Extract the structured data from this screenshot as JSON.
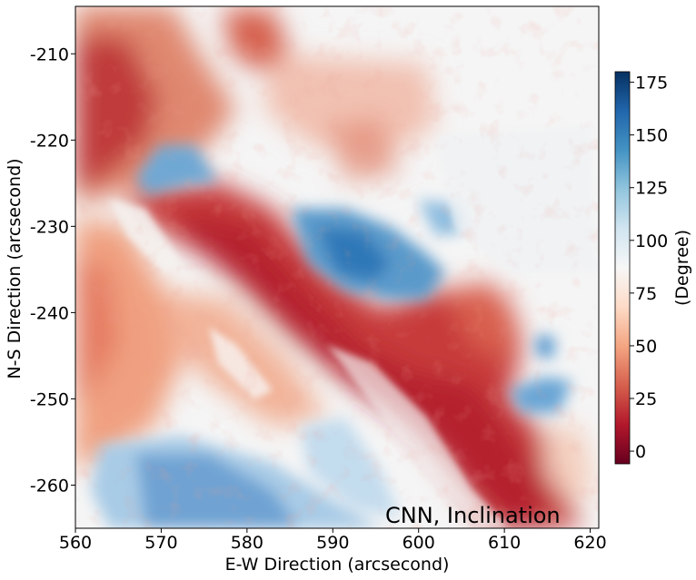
{
  "chart_data": {
    "type": "heatmap",
    "annotation": "CNN, Inclination",
    "xlabel": "E-W Direction (arcsecond)",
    "ylabel": "N-S Direction (arcsecond)",
    "xlim": [
      560,
      621
    ],
    "ylim": [
      -265,
      -204.5
    ],
    "x_ticks": [
      "560",
      "570",
      "580",
      "590",
      "600",
      "610",
      "620"
    ],
    "x_tick_values": [
      560,
      570,
      580,
      590,
      600,
      610,
      620
    ],
    "y_ticks": [
      "-210",
      "-220",
      "-230",
      "-240",
      "-250",
      "-260"
    ],
    "y_tick_values": [
      -210,
      -220,
      -230,
      -240,
      -250,
      -260
    ],
    "colorbar": {
      "label": "(Degree)",
      "range": [
        -6,
        180
      ],
      "ticks": [
        "0",
        "25",
        "50",
        "75",
        "100",
        "125",
        "150",
        "175"
      ],
      "tick_values": [
        0,
        25,
        50,
        75,
        100,
        125,
        150,
        175
      ],
      "colormap": "RdBu",
      "colors": [
        "#67001f",
        "#b2182b",
        "#d6604d",
        "#f4a582",
        "#fddbc7",
        "#f7f7f7",
        "#d1e5f0",
        "#92c5de",
        "#4393c3",
        "#2166ac",
        "#053061"
      ]
    },
    "grid": false
  }
}
